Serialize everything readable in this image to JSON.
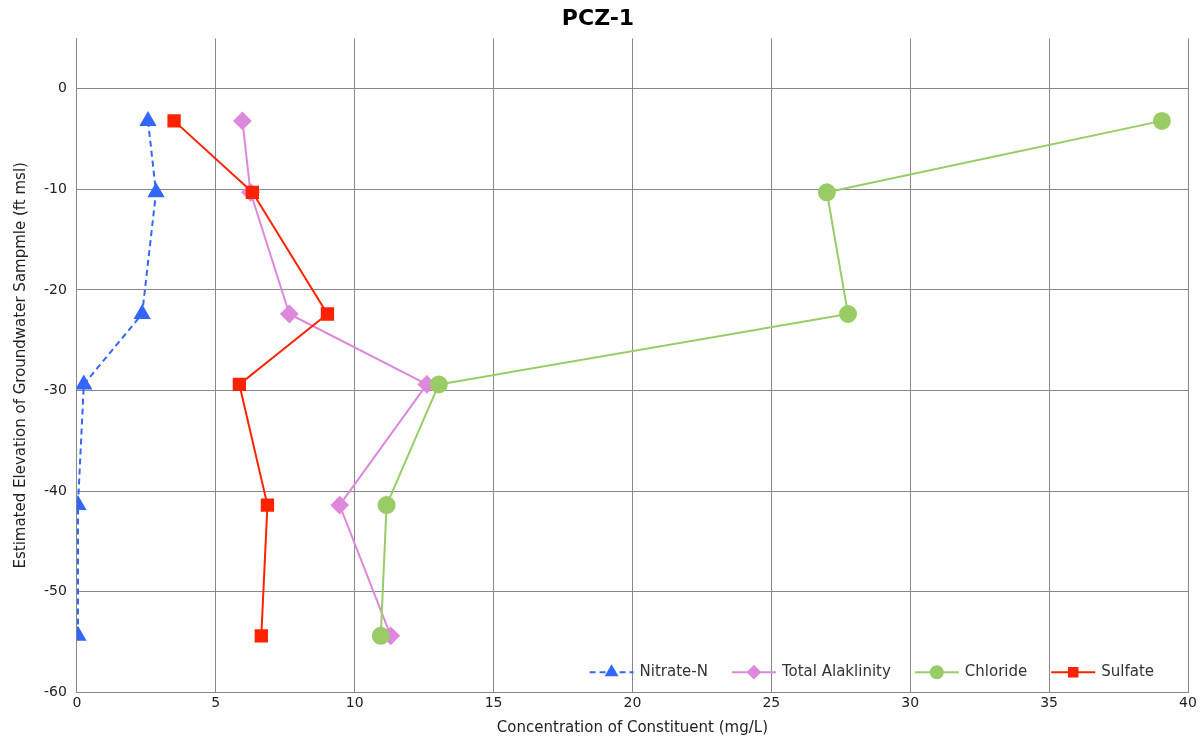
{
  "chart_data": {
    "type": "line",
    "title": "PCZ-1",
    "xlabel": "Concentration of Constituent (mg/L)",
    "ylabel": "Estimated Elevation of Groundwater Sampmle (ft msl)",
    "xlim": [
      0,
      40
    ],
    "xticks": [
      0,
      5,
      10,
      15,
      20,
      25,
      30,
      35,
      40
    ],
    "ylim": [
      -60,
      5
    ],
    "yticks": [
      -60,
      -50,
      -40,
      -30,
      -20,
      -10,
      0
    ],
    "grid": true,
    "legend": "bottom right",
    "series": [
      {
        "name": "Nitrate-N",
        "color": "#3366ff",
        "marker": "triangle",
        "line_style": "dashed",
        "x": [
          2.56,
          2.85,
          2.35,
          0.25,
          0.04,
          0.04
        ],
        "values": [
          -3.2,
          -10.3,
          -22.4,
          -29.4,
          -41.4,
          -54.4
        ]
      },
      {
        "name": "Total Alaklinity",
        "color": "#dd88dd",
        "marker": "diamond",
        "line_style": "solid",
        "x": [
          5.96,
          6.25,
          7.65,
          12.6,
          9.46,
          11.3
        ],
        "values": [
          -3.2,
          -10.3,
          -22.4,
          -29.4,
          -41.4,
          -54.4
        ]
      },
      {
        "name": "Chloride",
        "color": "#99cc66",
        "marker": "circle",
        "line_style": "solid",
        "x": [
          39.06,
          27.0,
          27.76,
          13.03,
          11.15,
          10.94
        ],
        "values": [
          -3.2,
          -10.3,
          -22.4,
          -29.4,
          -41.4,
          -54.4
        ]
      },
      {
        "name": "Sulfate",
        "color": "#ff2200",
        "marker": "square",
        "line_style": "solid",
        "x": [
          3.5,
          6.32,
          9.02,
          5.85,
          6.86,
          6.64
        ],
        "values": [
          -3.2,
          -10.3,
          -22.4,
          -29.4,
          -41.4,
          -54.4
        ]
      }
    ]
  }
}
